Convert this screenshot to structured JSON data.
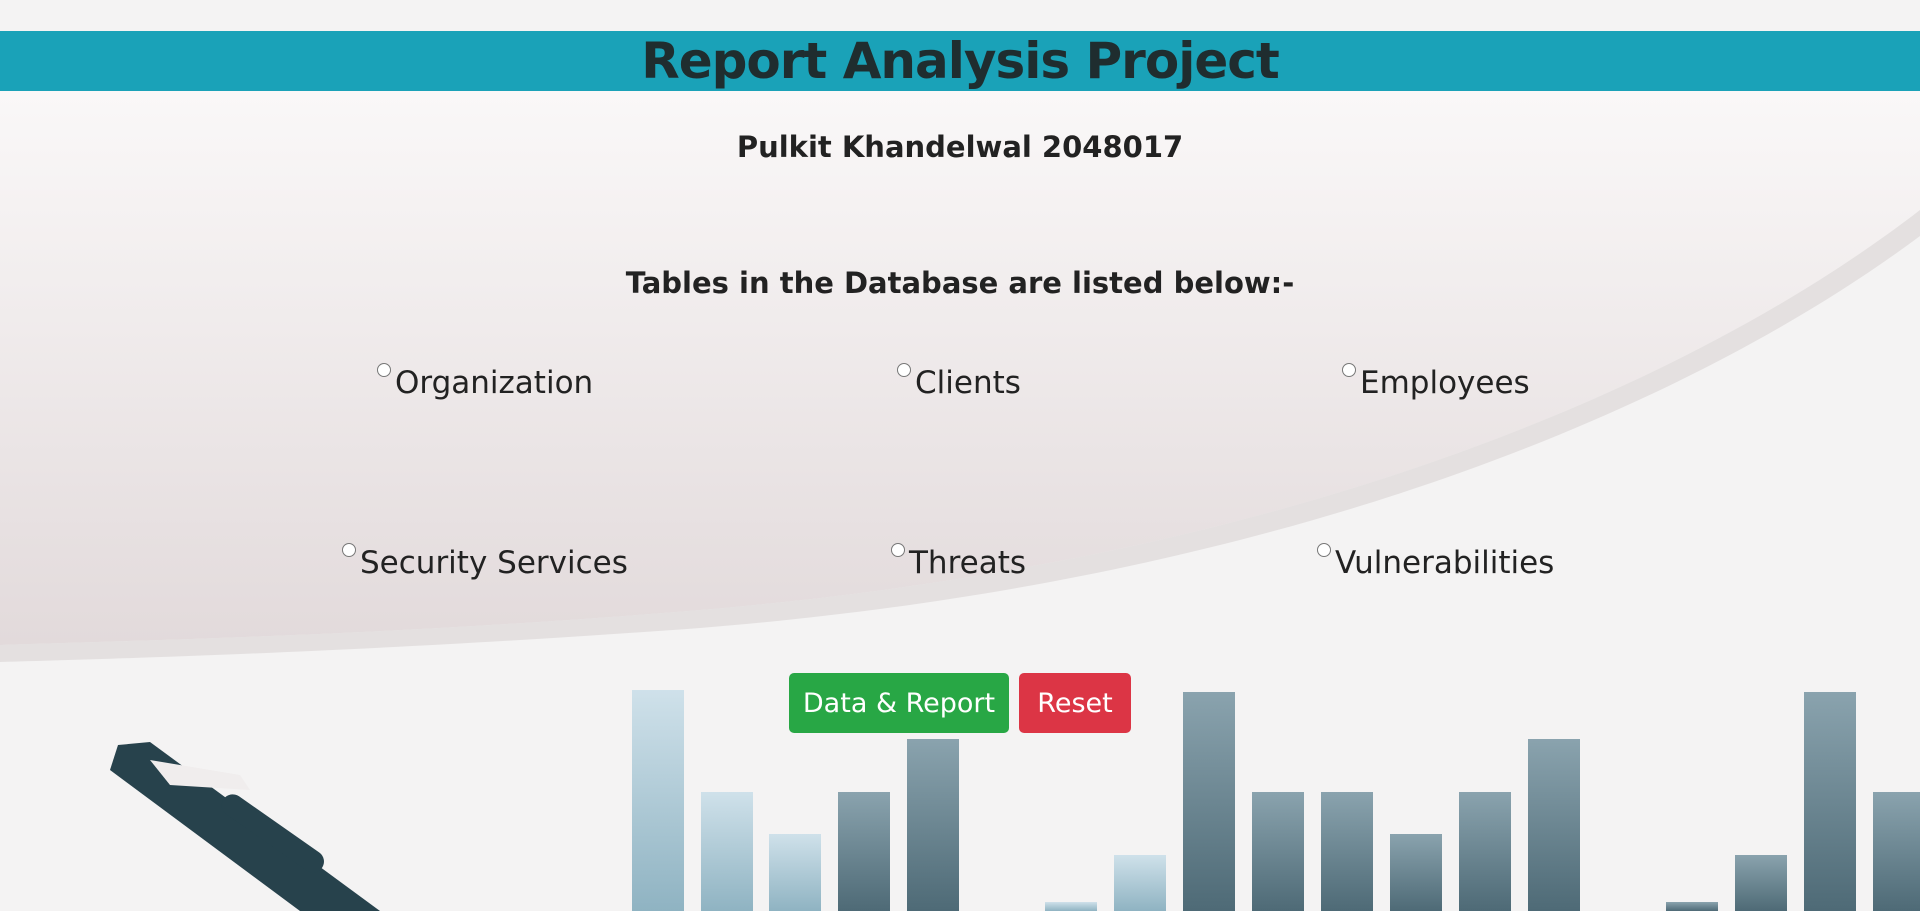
{
  "header": {
    "title": "Report Analysis Project"
  },
  "author": "Pulkit Khandelwal 2048017",
  "tables_heading": "Tables in the Database are listed below:-",
  "tables": [
    {
      "label": "Organization",
      "selected": false
    },
    {
      "label": "Clients",
      "selected": false
    },
    {
      "label": "Employees",
      "selected": false
    },
    {
      "label": "Security Services",
      "selected": false
    },
    {
      "label": "Threats",
      "selected": false
    },
    {
      "label": "Vulnerabilities",
      "selected": false
    }
  ],
  "buttons": {
    "submit_label": "Data & Report",
    "reset_label": "Reset"
  },
  "colors": {
    "header_bg": "#1aa2b8",
    "submit_bg": "#28a745",
    "reset_bg": "#dc3545"
  },
  "background": {
    "image": "decorative bar chart with pen",
    "icon": "pen-icon"
  }
}
